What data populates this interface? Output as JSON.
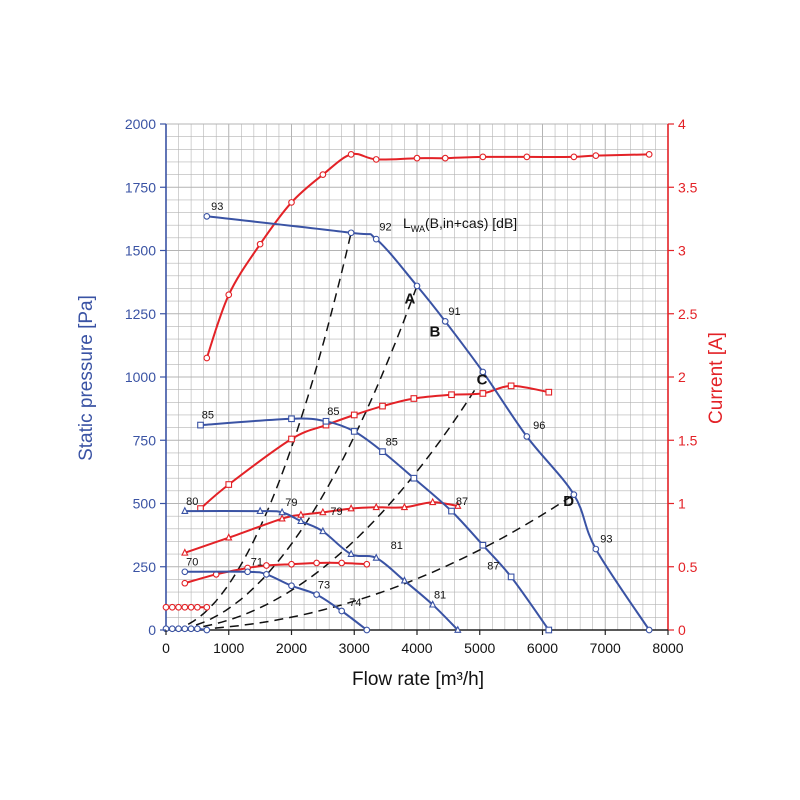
{
  "chart_data": {
    "type": "line",
    "xlabel": "Flow rate [m³/h]",
    "ylabel_left": "Static pressure [Pa]",
    "ylabel_right": "Current [A]",
    "lwa_label": {
      "main": "L",
      "sub": "WA",
      "rest": "(B,in+cas) [dB]"
    },
    "xlim": [
      0,
      8000
    ],
    "ylim_left": [
      0,
      2000
    ],
    "ylim_right": [
      0,
      4
    ],
    "x_ticks": [
      0,
      1000,
      2000,
      3000,
      4000,
      5000,
      6000,
      7000,
      8000
    ],
    "y_left_ticks": [
      0,
      250,
      500,
      750,
      1000,
      1250,
      1500,
      1750,
      2000
    ],
    "y_right_ticks": [
      0,
      0.5,
      1,
      1.5,
      2,
      2.5,
      3,
      3.5,
      4
    ],
    "y_right_tick_labels": [
      "0",
      "0.5",
      "1",
      "1.5",
      "2",
      "2.5",
      "3",
      "3.5",
      "4"
    ],
    "grid": true,
    "colors": {
      "pressure": "#3a53a4",
      "current": "#e32227",
      "grid": "#b4b4b4",
      "dash": "#111111"
    },
    "pressure_series": [
      {
        "marker": "circle",
        "x": [
          650,
          2950,
          3350,
          4000,
          4450,
          5050,
          5750,
          6500,
          6850,
          7700
        ],
        "y": [
          1635,
          1570,
          1545,
          1360,
          1220,
          1020,
          765,
          535,
          320,
          0
        ]
      },
      {
        "marker": "square",
        "x": [
          550,
          2000,
          2550,
          3000,
          3450,
          3950,
          4550,
          5050,
          5500,
          6100
        ],
        "y": [
          810,
          835,
          825,
          785,
          705,
          600,
          470,
          335,
          210,
          0
        ]
      },
      {
        "marker": "triangle",
        "x": [
          300,
          1500,
          1850,
          2150,
          2500,
          2950,
          3350,
          3800,
          4250,
          4650
        ],
        "y": [
          470,
          470,
          465,
          430,
          390,
          300,
          285,
          195,
          100,
          0
        ]
      },
      {
        "marker": "circle",
        "x": [
          300,
          1300,
          1600,
          2000,
          2400,
          2800,
          3200
        ],
        "y": [
          230,
          230,
          220,
          175,
          140,
          75,
          0
        ]
      },
      {
        "marker": "circle",
        "x": [
          0,
          100,
          200,
          300,
          400,
          500,
          650
        ],
        "y": [
          5,
          5,
          5,
          5,
          5,
          5,
          0
        ]
      }
    ],
    "current_series": [
      {
        "marker": "circle",
        "x": [
          650,
          1000,
          1500,
          2000,
          2500,
          2950,
          3350,
          4000,
          4450,
          5050,
          5750,
          6500,
          6850,
          7700
        ],
        "y": [
          2.15,
          2.65,
          3.05,
          3.38,
          3.6,
          3.76,
          3.72,
          3.73,
          3.73,
          3.74,
          3.74,
          3.74,
          3.75,
          3.76
        ]
      },
      {
        "marker": "square",
        "x": [
          550,
          1000,
          2000,
          2550,
          3000,
          3450,
          3950,
          4550,
          5050,
          5500,
          6100
        ],
        "y": [
          0.96,
          1.15,
          1.51,
          1.62,
          1.7,
          1.77,
          1.83,
          1.86,
          1.87,
          1.93,
          1.88
        ]
      },
      {
        "marker": "triangle",
        "x": [
          300,
          1000,
          1850,
          2150,
          2500,
          2950,
          3350,
          3800,
          4250,
          4650
        ],
        "y": [
          0.61,
          0.73,
          0.88,
          0.91,
          0.93,
          0.96,
          0.97,
          0.97,
          1.01,
          0.98
        ]
      },
      {
        "marker": "circle",
        "x": [
          300,
          800,
          1300,
          1600,
          2000,
          2400,
          2800,
          3200
        ],
        "y": [
          0.37,
          0.44,
          0.49,
          0.51,
          0.52,
          0.53,
          0.53,
          0.52
        ]
      },
      {
        "marker": "circle",
        "x": [
          0,
          100,
          200,
          300,
          400,
          500,
          650
        ],
        "y": [
          0.18,
          0.18,
          0.18,
          0.18,
          0.18,
          0.18,
          0.18
        ]
      }
    ],
    "system_lines": [
      {
        "label": "A",
        "x_end": 2950,
        "y_end": 1570
      },
      {
        "label": "B",
        "x_end": 4000,
        "y_end": 1360
      },
      {
        "label": "C",
        "x_end": 4950,
        "y_end": 960
      },
      {
        "label": "D",
        "x_end": 6500,
        "y_end": 535
      }
    ],
    "letter_positions": [
      {
        "label": "A",
        "x": 3800,
        "y": 1290
      },
      {
        "label": "B",
        "x": 4200,
        "y": 1160
      },
      {
        "label": "C",
        "x": 4950,
        "y": 970
      },
      {
        "label": "D",
        "x": 6330,
        "y": 490
      }
    ],
    "annotations": [
      {
        "text": "93",
        "x": 720,
        "y": 1660
      },
      {
        "text": "92",
        "x": 3400,
        "y": 1580
      },
      {
        "text": "91",
        "x": 4500,
        "y": 1245
      },
      {
        "text": "96",
        "x": 5850,
        "y": 795
      },
      {
        "text": "93",
        "x": 6920,
        "y": 345
      },
      {
        "text": "85",
        "x": 570,
        "y": 835
      },
      {
        "text": "85",
        "x": 2570,
        "y": 850
      },
      {
        "text": "85",
        "x": 3500,
        "y": 730
      },
      {
        "text": "87",
        "x": 4620,
        "y": 495
      },
      {
        "text": "87",
        "x": 5120,
        "y": 240
      },
      {
        "text": "80",
        "x": 320,
        "y": 495
      },
      {
        "text": "79",
        "x": 1900,
        "y": 490
      },
      {
        "text": "79",
        "x": 2620,
        "y": 455
      },
      {
        "text": "81",
        "x": 3580,
        "y": 320
      },
      {
        "text": "81",
        "x": 4270,
        "y": 125
      },
      {
        "text": "70",
        "x": 320,
        "y": 255
      },
      {
        "text": "71",
        "x": 1350,
        "y": 255
      },
      {
        "text": "73",
        "x": 2420,
        "y": 165
      },
      {
        "text": "74",
        "x": 2920,
        "y": 95
      }
    ]
  }
}
